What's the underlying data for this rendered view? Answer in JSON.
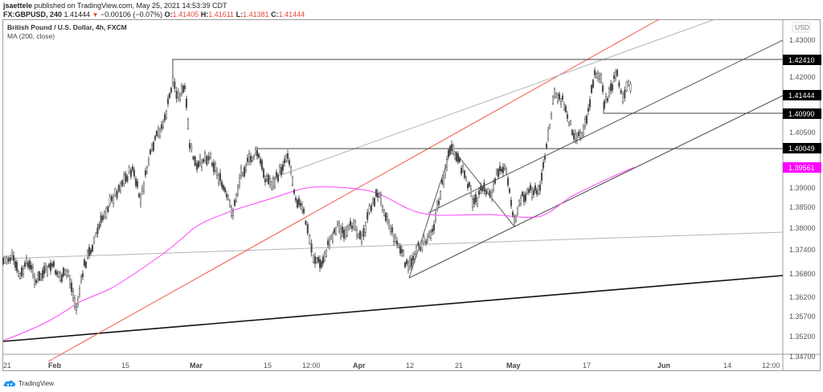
{
  "header": {
    "publisher": "jsaettele",
    "published_text": "published on TradingView.com, May 25, 2021 14:53:39 CDT",
    "symbol": "FX:GBPUSD, 240",
    "last": "1.41444",
    "change": "−0.00106 (−0.07%)",
    "direction_icon": "down-triangle-icon",
    "o_label": "O:",
    "o": "1.41405",
    "h_label": "H:",
    "h": "1.41611",
    "l_label": "L:",
    "l": "1.41381",
    "c_label": "C:",
    "c": "1.41444"
  },
  "legend": {
    "title": "British Pound / U.S. Dollar, 4h, FXCM",
    "indicator": "MA (200, close)"
  },
  "footer": {
    "brand": "TradingView"
  },
  "colors": {
    "candles": "#4a4a4a",
    "ma": "#ff44ff",
    "red_line": "#f05a4e",
    "price_tag": "#000000",
    "ma_tag": "#ff00ff",
    "frame": "#9b9b9b"
  },
  "chart_data": {
    "type": "line",
    "title": "British Pound / U.S. Dollar, 4h, FXCM",
    "subtitle": "FX:GBPUSD, 240 — MA (200, close)",
    "xlabel": "",
    "ylabel": "USD",
    "ylim": [
      1.347,
      1.433
    ],
    "grid": false,
    "legend_position": "top-left",
    "x_ticks": [
      "21",
      "Feb",
      "15",
      "Mar",
      "15",
      "12:00",
      "Apr",
      "12",
      "21",
      "May",
      "17",
      "Jun",
      "14",
      "12:00"
    ],
    "y_ticks": [
      "1.43000",
      "1.42000",
      "1.40500",
      "1.39000",
      "1.38500",
      "1.38000",
      "1.37400",
      "1.36800",
      "1.36200",
      "1.35700",
      "1.35200",
      "1.34700"
    ],
    "price_tags": [
      {
        "label": "1.42410",
        "kind": "horizontal-level"
      },
      {
        "label": "1.41444",
        "kind": "last-price"
      },
      {
        "label": "1.40990",
        "kind": "horizontal-level"
      },
      {
        "label": "1.40049",
        "kind": "horizontal-level"
      },
      {
        "label": "1.39561",
        "kind": "ma-200"
      }
    ],
    "series": [
      {
        "name": "GBPUSD 4h close (approx.)",
        "x": [
          "Jan 21",
          "Jan 26",
          "Feb 1",
          "Feb 4",
          "Feb 8",
          "Feb 12",
          "Feb 16",
          "Feb 19",
          "Feb 24",
          "Feb 26",
          "Mar 1",
          "Mar 4",
          "Mar 8",
          "Mar 11",
          "Mar 16",
          "Mar 18",
          "Mar 23",
          "Mar 26",
          "Mar 31",
          "Apr 2",
          "Apr 7",
          "Apr 12",
          "Apr 15",
          "Apr 20",
          "Apr 23",
          "Apr 27",
          "Apr 30",
          "May 4",
          "May 7",
          "May 11",
          "May 13",
          "May 17",
          "May 19",
          "May 21",
          "May 25"
        ],
        "values": [
          1.373,
          1.37,
          1.366,
          1.36,
          1.378,
          1.388,
          1.398,
          1.405,
          1.42,
          1.4,
          1.392,
          1.386,
          1.382,
          1.392,
          1.388,
          1.395,
          1.379,
          1.374,
          1.379,
          1.384,
          1.383,
          1.373,
          1.377,
          1.4,
          1.388,
          1.39,
          1.384,
          1.388,
          1.4,
          1.414,
          1.407,
          1.412,
          1.421,
          1.416,
          1.4144
        ]
      },
      {
        "name": "MA (200, close)",
        "x": [
          "Jan 21",
          "Feb 1",
          "Feb 8",
          "Feb 16",
          "Feb 26",
          "Mar 8",
          "Mar 15",
          "Mar 22",
          "Apr 1",
          "Apr 8",
          "Apr 15",
          "Apr 22",
          "May 3",
          "May 10",
          "May 17",
          "May 24"
        ],
        "values": [
          1.3515,
          1.3585,
          1.36,
          1.366,
          1.376,
          1.383,
          1.388,
          1.39,
          1.389,
          1.387,
          1.3845,
          1.3835,
          1.384,
          1.388,
          1.392,
          1.3956
        ]
      }
    ],
    "annotations": [
      {
        "type": "hline",
        "y": 1.4241,
        "from": "Feb 24"
      },
      {
        "type": "hline",
        "y": 1.4099,
        "from": "May 18"
      },
      {
        "type": "hline",
        "y": 1.40049,
        "from": "Mar 11"
      },
      {
        "type": "trendline",
        "color": "black",
        "note": "long-term support from Jan lows"
      },
      {
        "type": "trendline",
        "color": "red",
        "note": "steep channel line"
      },
      {
        "type": "parallel-channel",
        "note": "rising channel from Apr 12 low"
      },
      {
        "type": "pattern",
        "note": "zig-zag drawing Apr 12 → Apr 20 → May 1"
      }
    ]
  }
}
